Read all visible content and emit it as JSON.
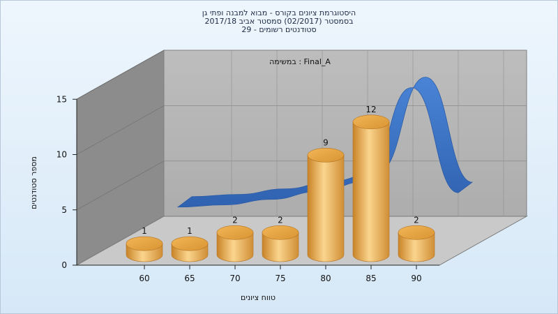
{
  "chart_data": {
    "type": "bar",
    "title_lines": [
      "היסטוגרמת ציונים בקורס - מבוא למבנה ופתי גן",
      "בסמסטר  (02/2017)  סמסטר אביב 2017/18",
      "סטודנטים רשומים - 29"
    ],
    "series_label": "במשימה : Final_A",
    "categories": [
      "60",
      "65",
      "70",
      "75",
      "80",
      "85",
      "90"
    ],
    "values": [
      1,
      1,
      2,
      2,
      9,
      12,
      2
    ],
    "trend_values": [
      3.2,
      3.4,
      3.9,
      4.6,
      5.5,
      14.0,
      4.5
    ],
    "xlabel": "טווח ציונים",
    "ylabel": "מספר סטודנטים",
    "yticks": [
      "0",
      "5",
      "10",
      "15"
    ],
    "ylim": [
      0,
      15
    ],
    "grid": true,
    "colors": {
      "bar_light": "#f6cf84",
      "bar_dark": "#cf8a2b",
      "trend": "#3a72c6",
      "back_wall": "#b6b6b6",
      "side_wall": "#8a8a8a",
      "floor": "#c6c6c6"
    }
  }
}
